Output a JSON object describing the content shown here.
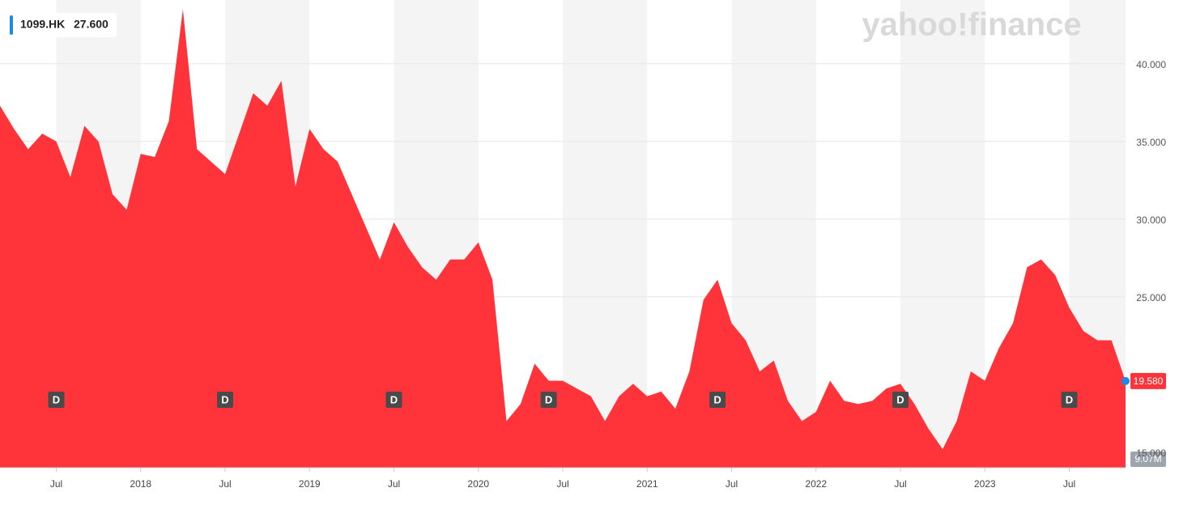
{
  "chart_data": {
    "type": "area",
    "watermark": "yahoo!finance",
    "legend_value": "27.600",
    "x": [
      "2017-03",
      "2017-04",
      "2017-05",
      "2017-06",
      "2017-07",
      "2017-08",
      "2017-09",
      "2017-10",
      "2017-11",
      "2017-12",
      "2018-01",
      "2018-02",
      "2018-03",
      "2018-04",
      "2018-05",
      "2018-06",
      "2018-07",
      "2018-08",
      "2018-09",
      "2018-10",
      "2018-11",
      "2018-12",
      "2019-01",
      "2019-02",
      "2019-03",
      "2019-04",
      "2019-05",
      "2019-06",
      "2019-07",
      "2019-08",
      "2019-09",
      "2019-10",
      "2019-11",
      "2019-12",
      "2020-01",
      "2020-02",
      "2020-03",
      "2020-04",
      "2020-05",
      "2020-06",
      "2020-07",
      "2020-08",
      "2020-09",
      "2020-10",
      "2020-11",
      "2020-12",
      "2021-01",
      "2021-02",
      "2021-03",
      "2021-04",
      "2021-05",
      "2021-06",
      "2021-07",
      "2021-08",
      "2021-09",
      "2021-10",
      "2021-11",
      "2021-12",
      "2022-01",
      "2022-02",
      "2022-03",
      "2022-04",
      "2022-05",
      "2022-06",
      "2022-07",
      "2022-08",
      "2022-09",
      "2022-10",
      "2022-11",
      "2022-12",
      "2023-01",
      "2023-02",
      "2023-03",
      "2023-04",
      "2023-05",
      "2023-06",
      "2023-07",
      "2023-08",
      "2023-09",
      "2023-10",
      "2023-11"
    ],
    "series": [
      {
        "name": "1099.HK",
        "color": "#ff333a",
        "values": [
          37.3,
          35.8,
          34.5,
          35.5,
          35.0,
          32.7,
          36.0,
          35.0,
          31.6,
          30.6,
          34.2,
          34.0,
          36.3,
          43.5,
          34.5,
          33.7,
          32.9,
          35.5,
          38.1,
          37.3,
          38.9,
          32.1,
          35.8,
          34.5,
          33.7,
          31.6,
          29.5,
          27.4,
          29.8,
          28.2,
          26.9,
          26.1,
          27.4,
          27.4,
          28.5,
          26.1,
          17.0,
          18.1,
          20.7,
          19.6,
          19.6,
          19.1,
          18.6,
          17.0,
          18.6,
          19.4,
          18.6,
          18.9,
          17.8,
          20.2,
          24.8,
          26.1,
          23.3,
          22.2,
          20.2,
          20.9,
          18.3,
          17.0,
          17.6,
          19.6,
          18.3,
          18.1,
          18.3,
          19.1,
          19.4,
          18.1,
          16.5,
          15.2,
          17.0,
          20.2,
          19.6,
          21.7,
          23.3,
          26.9,
          27.4,
          26.4,
          24.3,
          22.8,
          22.2,
          22.2,
          19.58
        ]
      }
    ],
    "last_value": {
      "value": 19.58,
      "label": "19.580"
    },
    "volume_label": "9.07M",
    "xlim": [
      "2017-03",
      "2023-11"
    ],
    "xticks": [
      {
        "value": "2017-07",
        "label": "Jul"
      },
      {
        "value": "2018-01",
        "label": "2018"
      },
      {
        "value": "2018-07",
        "label": "Jul"
      },
      {
        "value": "2019-01",
        "label": "2019"
      },
      {
        "value": "2019-07",
        "label": "Jul"
      },
      {
        "value": "2020-01",
        "label": "2020"
      },
      {
        "value": "2020-07",
        "label": "Jul"
      },
      {
        "value": "2021-01",
        "label": "2021"
      },
      {
        "value": "2021-07",
        "label": "Jul"
      },
      {
        "value": "2022-01",
        "label": "2022"
      },
      {
        "value": "2022-07",
        "label": "Jul"
      },
      {
        "value": "2023-01",
        "label": "2023"
      },
      {
        "value": "2023-07",
        "label": "Jul"
      }
    ],
    "ylim": [
      14.0,
      44.1
    ],
    "yticks": [
      {
        "value": 15,
        "label": "15.000"
      },
      {
        "value": 25,
        "label": "25.000"
      },
      {
        "value": 30,
        "label": "30.000"
      },
      {
        "value": 35,
        "label": "35.000"
      },
      {
        "value": 40,
        "label": "40.000"
      }
    ],
    "grid": true,
    "dividends": [
      {
        "x": "2017-07",
        "label": "D"
      },
      {
        "x": "2018-07",
        "label": "D"
      },
      {
        "x": "2019-07",
        "label": "D"
      },
      {
        "x": "2020-06",
        "label": "D"
      },
      {
        "x": "2021-06",
        "label": "D"
      },
      {
        "x": "2022-07",
        "label": "D"
      },
      {
        "x": "2023-07",
        "label": "D"
      }
    ]
  }
}
